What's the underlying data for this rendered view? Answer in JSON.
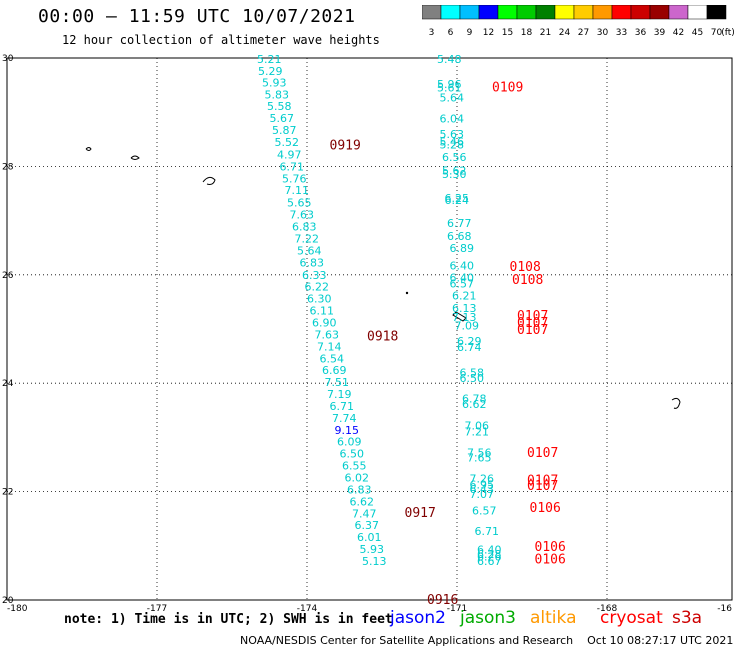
{
  "header": {
    "title": "00:00 – 11:59 UTC 10/07/2021",
    "subtitle": "12 hour collection of altimeter wave heights"
  },
  "legend": {
    "bins": [
      {
        "label": "3",
        "color": "#808080"
      },
      {
        "label": "6",
        "color": "#00ffff"
      },
      {
        "label": "9",
        "color": "#00bfff"
      },
      {
        "label": "12",
        "color": "#0000ff"
      },
      {
        "label": "15",
        "color": "#00ff00"
      },
      {
        "label": "18",
        "color": "#00cc00"
      },
      {
        "label": "21",
        "color": "#008000"
      },
      {
        "label": "24",
        "color": "#ffff00"
      },
      {
        "label": "27",
        "color": "#ffcc00"
      },
      {
        "label": "30",
        "color": "#ff9900"
      },
      {
        "label": "33",
        "color": "#ff0000"
      },
      {
        "label": "36",
        "color": "#cc0000"
      },
      {
        "label": "39",
        "color": "#990000"
      },
      {
        "label": "42",
        "color": "#cc66cc"
      },
      {
        "label": "45",
        "color": "#ffffff"
      },
      {
        "label": "70",
        "color": "#000000"
      }
    ],
    "unit": "(ft)"
  },
  "map": {
    "x_ticks": [
      "-180",
      "-177",
      "-174",
      "-171",
      "-168",
      "-16"
    ],
    "y_ticks": [
      "30",
      "28",
      "26",
      "24",
      "22",
      "20"
    ],
    "track_west": {
      "color": "#00cccc",
      "points": [
        {
          "lon": -175.0,
          "lat": 29.98,
          "v": "5.21"
        },
        {
          "lon": -174.98,
          "lat": 29.76,
          "v": "5.29"
        },
        {
          "lon": -174.9,
          "lat": 29.55,
          "v": "5.93"
        },
        {
          "lon": -174.85,
          "lat": 29.33,
          "v": "5.83"
        },
        {
          "lon": -174.8,
          "lat": 29.11,
          "v": "5.58"
        },
        {
          "lon": -174.75,
          "lat": 28.89,
          "v": "5.67"
        },
        {
          "lon": -174.7,
          "lat": 28.67,
          "v": "5.87"
        },
        {
          "lon": -174.65,
          "lat": 28.45,
          "v": "5.52"
        },
        {
          "lon": -174.6,
          "lat": 28.22,
          "v": "4.97"
        },
        {
          "lon": -174.55,
          "lat": 28.0,
          "v": "6.71"
        },
        {
          "lon": -174.5,
          "lat": 27.78,
          "v": "5.76"
        },
        {
          "lon": -174.45,
          "lat": 27.56,
          "v": "7.11"
        },
        {
          "lon": -174.4,
          "lat": 27.33,
          "v": "5.65"
        },
        {
          "lon": -174.35,
          "lat": 27.11,
          "v": "7.63"
        },
        {
          "lon": -174.3,
          "lat": 26.89,
          "v": "6.83"
        },
        {
          "lon": -174.25,
          "lat": 26.67,
          "v": "7.22"
        },
        {
          "lon": -174.2,
          "lat": 26.45,
          "v": "5.64"
        },
        {
          "lon": -174.15,
          "lat": 26.23,
          "v": "6.83"
        },
        {
          "lon": -174.1,
          "lat": 26.0,
          "v": "6.33"
        },
        {
          "lon": -174.05,
          "lat": 25.78,
          "v": "6.22"
        },
        {
          "lon": -174.0,
          "lat": 25.56,
          "v": "6.30"
        },
        {
          "lon": -173.95,
          "lat": 25.34,
          "v": "6.11"
        },
        {
          "lon": -173.9,
          "lat": 25.12,
          "v": "6.90"
        },
        {
          "lon": -173.85,
          "lat": 24.9,
          "v": "7.63"
        },
        {
          "lon": -173.8,
          "lat": 24.68,
          "v": "7.14"
        },
        {
          "lon": -173.75,
          "lat": 24.46,
          "v": "6.54"
        },
        {
          "lon": -173.7,
          "lat": 24.24,
          "v": "6.69"
        },
        {
          "lon": -173.65,
          "lat": 24.02,
          "v": "7.51"
        },
        {
          "lon": -173.6,
          "lat": 23.8,
          "v": "7.19"
        },
        {
          "lon": -173.55,
          "lat": 23.58,
          "v": "6.71"
        },
        {
          "lon": -173.5,
          "lat": 23.36,
          "v": "7.74"
        },
        {
          "lon": -173.45,
          "lat": 23.14,
          "v": "9.15",
          "c": "#0000ff"
        },
        {
          "lon": -173.4,
          "lat": 22.92,
          "v": "6.09"
        },
        {
          "lon": -173.35,
          "lat": 22.7,
          "v": "6.50"
        },
        {
          "lon": -173.3,
          "lat": 22.48,
          "v": "6.55"
        },
        {
          "lon": -173.25,
          "lat": 22.26,
          "v": "6.02"
        },
        {
          "lon": -173.2,
          "lat": 22.04,
          "v": "6.83"
        },
        {
          "lon": -173.15,
          "lat": 21.82,
          "v": "6.62"
        },
        {
          "lon": -173.1,
          "lat": 21.6,
          "v": "7.47"
        },
        {
          "lon": -173.05,
          "lat": 21.38,
          "v": "6.37"
        },
        {
          "lon": -173.0,
          "lat": 21.16,
          "v": "6.01"
        },
        {
          "lon": -172.95,
          "lat": 20.94,
          "v": "5.93"
        },
        {
          "lon": -172.9,
          "lat": 20.72,
          "v": "5.13"
        }
      ]
    },
    "track_mid": {
      "color": "#00cccc",
      "points": [
        {
          "lon": -171.4,
          "lat": 29.98,
          "v": "5.48"
        },
        {
          "lon": -171.4,
          "lat": 29.52,
          "v": "5.96"
        },
        {
          "lon": -171.4,
          "lat": 29.46,
          "v": "5.61"
        },
        {
          "lon": -171.35,
          "lat": 29.27,
          "v": "5.64"
        },
        {
          "lon": -171.35,
          "lat": 28.88,
          "v": "6.04"
        },
        {
          "lon": -171.35,
          "lat": 28.6,
          "v": "5.63"
        },
        {
          "lon": -171.35,
          "lat": 28.46,
          "v": "5.46"
        },
        {
          "lon": -171.35,
          "lat": 28.4,
          "v": "5.28"
        },
        {
          "lon": -171.3,
          "lat": 28.17,
          "v": "6.56"
        },
        {
          "lon": -171.3,
          "lat": 27.92,
          "v": "5.62"
        },
        {
          "lon": -171.3,
          "lat": 27.86,
          "v": "5.30"
        },
        {
          "lon": -171.25,
          "lat": 27.42,
          "v": "6.25"
        },
        {
          "lon": -171.25,
          "lat": 27.38,
          "v": "6.24"
        },
        {
          "lon": -171.2,
          "lat": 26.96,
          "v": "6.77"
        },
        {
          "lon": -171.2,
          "lat": 26.72,
          "v": "6.68"
        },
        {
          "lon": -171.15,
          "lat": 26.49,
          "v": "6.89"
        },
        {
          "lon": -171.15,
          "lat": 26.17,
          "v": "6.40"
        },
        {
          "lon": -171.15,
          "lat": 25.95,
          "v": "6.40"
        },
        {
          "lon": -171.15,
          "lat": 25.84,
          "v": "6.57"
        },
        {
          "lon": -171.1,
          "lat": 25.62,
          "v": "6.21"
        },
        {
          "lon": -171.1,
          "lat": 25.39,
          "v": "6.13"
        },
        {
          "lon": -171.1,
          "lat": 25.22,
          "v": "7.13"
        },
        {
          "lon": -171.05,
          "lat": 25.06,
          "v": "7.09"
        },
        {
          "lon": -171.0,
          "lat": 24.78,
          "v": "6.29"
        },
        {
          "lon": -171.0,
          "lat": 24.67,
          "v": "6.74"
        },
        {
          "lon": -170.95,
          "lat": 24.2,
          "v": "6.58"
        },
        {
          "lon": -170.95,
          "lat": 24.1,
          "v": "6.50"
        },
        {
          "lon": -170.9,
          "lat": 23.72,
          "v": "6.78"
        },
        {
          "lon": -170.9,
          "lat": 23.62,
          "v": "6.62"
        },
        {
          "lon": -170.85,
          "lat": 23.22,
          "v": "7.06"
        },
        {
          "lon": -170.85,
          "lat": 23.11,
          "v": "7.21"
        },
        {
          "lon": -170.8,
          "lat": 22.72,
          "v": "7.56"
        },
        {
          "lon": -170.8,
          "lat": 22.63,
          "v": "7.65"
        },
        {
          "lon": -170.75,
          "lat": 22.24,
          "v": "7.26"
        },
        {
          "lon": -170.75,
          "lat": 22.13,
          "v": "6.95"
        },
        {
          "lon": -170.75,
          "lat": 22.05,
          "v": "6.43"
        },
        {
          "lon": -170.75,
          "lat": 21.96,
          "v": "7.07"
        },
        {
          "lon": -170.7,
          "lat": 21.65,
          "v": "6.57"
        },
        {
          "lon": -170.65,
          "lat": 21.27,
          "v": "6.71"
        },
        {
          "lon": -170.6,
          "lat": 20.93,
          "v": "6.40"
        },
        {
          "lon": -170.6,
          "lat": 20.85,
          "v": "6.28"
        },
        {
          "lon": -170.6,
          "lat": 20.8,
          "v": "6.26"
        },
        {
          "lon": -170.6,
          "lat": 20.72,
          "v": "6.67"
        }
      ]
    },
    "times": [
      {
        "lon": -173.55,
        "lat": 28.4,
        "v": "0919",
        "c": "#800000"
      },
      {
        "lon": -172.8,
        "lat": 24.88,
        "v": "0918",
        "c": "#800000"
      },
      {
        "lon": -172.05,
        "lat": 21.62,
        "v": "0917",
        "c": "#800000"
      },
      {
        "lon": -171.6,
        "lat": 20.02,
        "v": "0916",
        "c": "#800000"
      },
      {
        "lon": -170.3,
        "lat": 29.47,
        "v": "0109",
        "c": "#ff0000"
      },
      {
        "lon": -169.95,
        "lat": 26.16,
        "v": "0108",
        "c": "#ff0000"
      },
      {
        "lon": -169.9,
        "lat": 25.92,
        "v": "0108",
        "c": "#ff0000"
      },
      {
        "lon": -169.8,
        "lat": 25.26,
        "v": "0107",
        "c": "#ff0000"
      },
      {
        "lon": -169.8,
        "lat": 25.13,
        "v": "0107",
        "c": "#ff0000"
      },
      {
        "lon": -169.8,
        "lat": 25.0,
        "v": "0107",
        "c": "#ff0000"
      },
      {
        "lon": -169.6,
        "lat": 22.73,
        "v": "0107",
        "c": "#ff0000"
      },
      {
        "lon": -169.6,
        "lat": 22.22,
        "v": "0107",
        "c": "#ff0000"
      },
      {
        "lon": -169.6,
        "lat": 22.12,
        "v": "0107",
        "c": "#ff0000"
      },
      {
        "lon": -169.55,
        "lat": 21.72,
        "v": "0106",
        "c": "#ff0000"
      },
      {
        "lon": -169.45,
        "lat": 21.0,
        "v": "0106",
        "c": "#ff0000"
      },
      {
        "lon": -169.45,
        "lat": 20.77,
        "v": "0106",
        "c": "#ff0000"
      }
    ]
  },
  "footer": {
    "note": "note: 1) Time is in UTC; 2) SWH is in feet",
    "satellites": [
      {
        "name": "jason2",
        "color": "#0000ff"
      },
      {
        "name": "jason3",
        "color": "#00aa00"
      },
      {
        "name": "altika",
        "color": "#ff9900"
      },
      {
        "name": "cryosat",
        "color": "#ff0000"
      },
      {
        "name": "s3a",
        "color": "#cc0000"
      }
    ],
    "credit": "NOAA/NESDIS Center for Satellite Applications and Research",
    "timestamp": "Oct 10 08:27:17 UTC 2021"
  }
}
